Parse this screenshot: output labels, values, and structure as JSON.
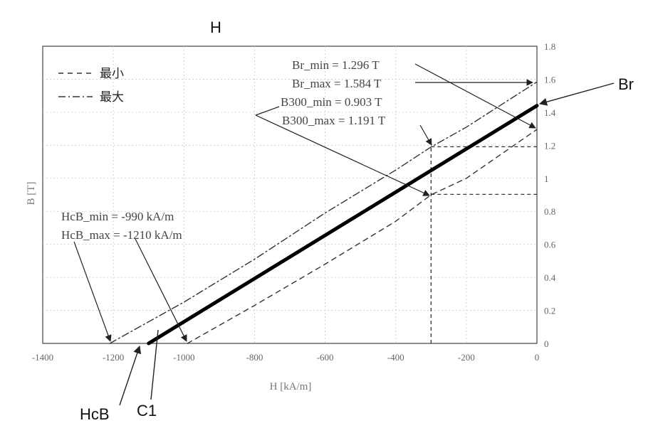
{
  "chart_data": {
    "type": "line",
    "title": "H",
    "xlabel": "H [kA/m]",
    "ylabel": "B [T]",
    "xlim": [
      -1400,
      0
    ],
    "ylim": [
      0,
      1.8
    ],
    "x_ticks": [
      -1400,
      -1200,
      -1000,
      -800,
      -600,
      -400,
      -200,
      0
    ],
    "x_tick_labels": [
      "-1400",
      "-1200",
      "-1000",
      "-800",
      "-600",
      "-400",
      "-200",
      "0"
    ],
    "y_ticks": [
      0,
      0.2,
      0.4,
      0.6,
      0.8,
      1.0,
      1.2,
      1.4,
      1.6,
      1.8
    ],
    "y_tick_labels": [
      "0",
      "0.2",
      "0.4",
      "0.6",
      "0.8",
      "1",
      "1.2",
      "1.4",
      "1.6",
      "1.8"
    ],
    "grid": true,
    "legend": "top-left",
    "legend_entries": [
      {
        "label": "最小",
        "style": "dashed"
      },
      {
        "label": "最大",
        "style": "dash-dot"
      }
    ],
    "series": [
      {
        "name": "最小",
        "style": "dashed",
        "x": [
          -990,
          -800,
          -600,
          -400,
          -300,
          -200,
          0
        ],
        "y": [
          0,
          0.23,
          0.48,
          0.74,
          0.9,
          1.0,
          1.296
        ]
      },
      {
        "name": "最大",
        "style": "dash-dot",
        "x": [
          -1210,
          -1000,
          -800,
          -600,
          -400,
          -300,
          -200,
          0
        ],
        "y": [
          0,
          0.25,
          0.51,
          0.79,
          1.05,
          1.19,
          1.31,
          1.584
        ]
      },
      {
        "style": "solid-bold",
        "x": [
          -1100,
          0
        ],
        "y": [
          0,
          1.44
        ]
      }
    ],
    "reference_lines": [
      {
        "x": -300,
        "y_from": 0,
        "y_to": 1.191
      },
      {
        "y": 1.191,
        "x_from": -300,
        "x_to": 0
      },
      {
        "y": 0.903,
        "x_from": -300,
        "x_to": 0
      }
    ],
    "annotations": {
      "br_min": "Br_min = 1.296 T",
      "br_max": "Br_max = 1.584 T",
      "b300_min": "B300_min = 0.903 T",
      "b300_max": "B300_max = 1.191 T",
      "hcb_min": "HcB_min = -990 kA/m",
      "hcb_max": "HcB_max = -1210 kA/m"
    },
    "callouts": {
      "br": "Br",
      "hcb": "HcB",
      "c1": "C1"
    }
  }
}
